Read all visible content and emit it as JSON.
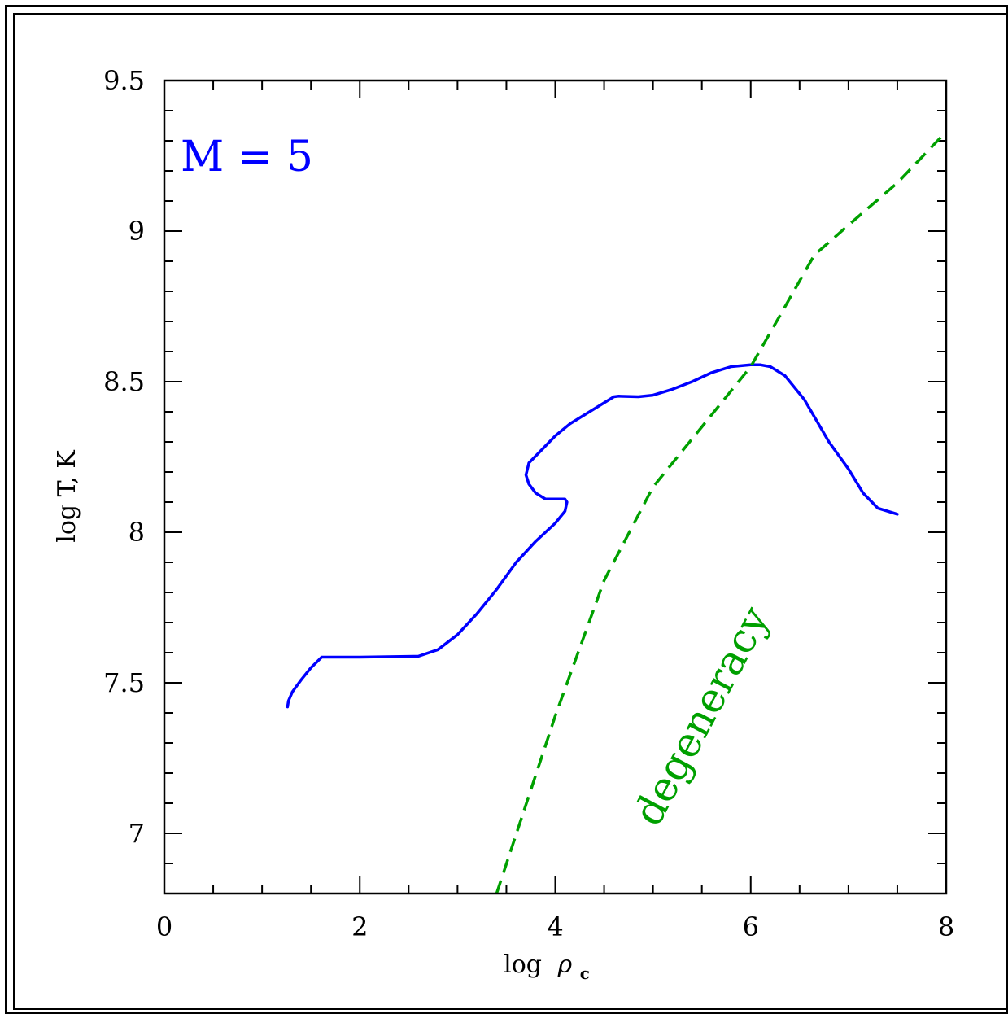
{
  "chart_data": {
    "type": "line",
    "xlabel": "log",
    "xlabel_symbol": "ρ",
    "xlabel_sub": "c",
    "ylabel": "log T, K",
    "xlim": [
      0,
      8
    ],
    "ylim": [
      6.8,
      9.5
    ],
    "x_ticks": [
      "0",
      "2",
      "4",
      "6",
      "8"
    ],
    "y_ticks": [
      "7",
      "7.5",
      "8",
      "8.5",
      "9",
      "9.5"
    ],
    "grid": false,
    "annotations": [
      {
        "text": "M = 5",
        "color": "#0000ff"
      },
      {
        "text": "degeneracy",
        "color": "#00a000"
      }
    ],
    "series": [
      {
        "color": "#0000ff",
        "style": "solid",
        "x": [
          1.26,
          1.27,
          1.31,
          1.4,
          1.5,
          1.61,
          2.0,
          2.6,
          2.8,
          3.0,
          3.2,
          3.4,
          3.6,
          3.8,
          4.0,
          4.1,
          4.12,
          4.1,
          4.0,
          3.9,
          3.8,
          3.73,
          3.7,
          3.73,
          3.85,
          4.0,
          4.15,
          4.3,
          4.45,
          4.6,
          4.65,
          4.85,
          5.0,
          5.2,
          5.4,
          5.6,
          5.8,
          6.0,
          6.1,
          6.2,
          6.35,
          6.55,
          6.8,
          7.0,
          7.15,
          7.3,
          7.5
        ],
        "y": [
          7.42,
          7.44,
          7.47,
          7.51,
          7.55,
          7.585,
          7.585,
          7.588,
          7.61,
          7.66,
          7.73,
          7.81,
          7.9,
          7.97,
          8.03,
          8.07,
          8.1,
          8.11,
          8.11,
          8.11,
          8.13,
          8.16,
          8.19,
          8.23,
          8.27,
          8.32,
          8.36,
          8.39,
          8.42,
          8.45,
          8.452,
          8.45,
          8.455,
          8.475,
          8.5,
          8.53,
          8.55,
          8.556,
          8.556,
          8.55,
          8.52,
          8.44,
          8.3,
          8.21,
          8.13,
          8.08,
          8.06
        ]
      },
      {
        "color": "#00a000",
        "style": "dashed",
        "x": [
          3.4,
          4.0,
          4.5,
          5.0,
          5.5,
          6.0,
          6.3,
          6.65,
          7.0,
          7.5,
          8.0
        ],
        "y": [
          6.8,
          7.39,
          7.84,
          8.15,
          8.35,
          8.55,
          8.72,
          8.92,
          9.02,
          9.16,
          9.33
        ]
      }
    ]
  }
}
